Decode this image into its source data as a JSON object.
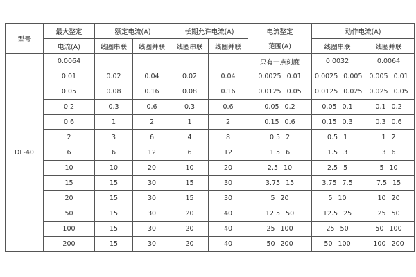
{
  "header": {
    "model": "型号",
    "max_setting_1": "最大整定",
    "max_setting_2": "电流(A)",
    "rated": "额定电流(A)",
    "long_term": "长期允许电流(A)",
    "range_1": "电流整定",
    "range_2": "范围(A)",
    "action": "动作电流(A)",
    "series": "线圈串联",
    "parallel": "线圈并联"
  },
  "model_name": "DL-40",
  "rows": [
    {
      "max": "0.0064",
      "rs": "",
      "rp": "",
      "ls": "",
      "lp": "",
      "range": [
        "只有一点刻度"
      ],
      "as": [
        "0.0032"
      ],
      "ap": [
        "0.0064"
      ]
    },
    {
      "max": "0.01",
      "rs": "0.02",
      "rp": "0.04",
      "ls": "0.02",
      "lp": "0.04",
      "range": [
        "0.0025",
        "0.01"
      ],
      "as": [
        "0.0025",
        "0.005"
      ],
      "ap": [
        "0.005",
        "0.01"
      ]
    },
    {
      "max": "0.05",
      "rs": "0.08",
      "rp": "0.16",
      "ls": "0.08",
      "lp": "0.16",
      "range": [
        "0.0125",
        "0.05"
      ],
      "as": [
        "0.0125",
        "0.025"
      ],
      "ap": [
        "0.025",
        "0.05"
      ]
    },
    {
      "max": "0.2",
      "rs": "0.3",
      "rp": "0.6",
      "ls": "0.3",
      "lp": "0.6",
      "range": [
        "0.05",
        "0.2"
      ],
      "as": [
        "0.05",
        "0.1"
      ],
      "ap": [
        "0.1",
        "0.2"
      ]
    },
    {
      "max": "0.6",
      "rs": "1",
      "rp": "2",
      "ls": "1",
      "lp": "2",
      "range": [
        "0.15",
        "0.6"
      ],
      "as": [
        "0.15",
        "0.3"
      ],
      "ap": [
        "0.3",
        "0.6"
      ]
    },
    {
      "max": "2",
      "rs": "3",
      "rp": "6",
      "ls": "4",
      "lp": "8",
      "range": [
        "0.5",
        "2"
      ],
      "as": [
        "0.5",
        "1"
      ],
      "ap": [
        "1",
        "2"
      ]
    },
    {
      "max": "6",
      "rs": "6",
      "rp": "12",
      "ls": "6",
      "lp": "12",
      "range": [
        "1.5",
        "6"
      ],
      "as": [
        "1.5",
        "3"
      ],
      "ap": [
        "3",
        "6"
      ]
    },
    {
      "max": "10",
      "rs": "10",
      "rp": "20",
      "ls": "10",
      "lp": "20",
      "range": [
        "2.5",
        "10"
      ],
      "as": [
        "2.5",
        "5"
      ],
      "ap": [
        "5",
        "10"
      ]
    },
    {
      "max": "15",
      "rs": "15",
      "rp": "30",
      "ls": "15",
      "lp": "30",
      "range": [
        "3.75",
        "15"
      ],
      "as": [
        "3.75",
        "7.5"
      ],
      "ap": [
        "7.5",
        "15"
      ]
    },
    {
      "max": "20",
      "rs": "15",
      "rp": "30",
      "ls": "15",
      "lp": "30",
      "range": [
        "5",
        "20"
      ],
      "as": [
        "5",
        "10"
      ],
      "ap": [
        "10",
        "20"
      ]
    },
    {
      "max": "50",
      "rs": "15",
      "rp": "30",
      "ls": "20",
      "lp": "40",
      "range": [
        "12.5",
        "50"
      ],
      "as": [
        "12.5",
        "25"
      ],
      "ap": [
        "25",
        "50"
      ]
    },
    {
      "max": "100",
      "rs": "15",
      "rp": "30",
      "ls": "20",
      "lp": "40",
      "range": [
        "25",
        "100"
      ],
      "as": [
        "25",
        "50"
      ],
      "ap": [
        "50",
        "100"
      ]
    },
    {
      "max": "200",
      "rs": "15",
      "rp": "30",
      "ls": "20",
      "lp": "40",
      "range": [
        "50",
        "200"
      ],
      "as": [
        "50",
        "100"
      ],
      "ap": [
        "100",
        "200"
      ]
    }
  ]
}
